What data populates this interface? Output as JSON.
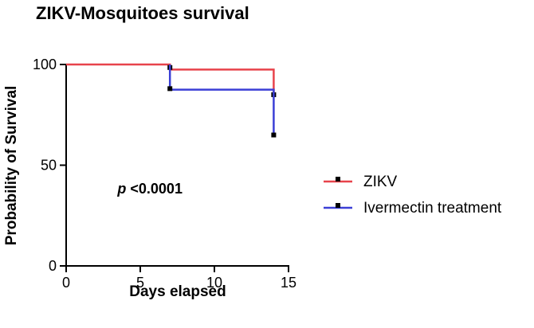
{
  "chart_data": {
    "type": "line",
    "title": "ZIKV-Mosquitoes survival",
    "xlabel": "Days elapsed",
    "ylabel": "Probability of Survival",
    "xlim": [
      0,
      15
    ],
    "ylim": [
      0,
      100
    ],
    "xticks": [
      0,
      5,
      10,
      15
    ],
    "yticks": [
      0,
      50,
      100
    ],
    "legend_position": "right",
    "series": [
      {
        "name": "ZIKV",
        "color": "#e8434b",
        "steps": [
          [
            0,
            100
          ],
          [
            7,
            100
          ],
          [
            7,
            97.5
          ],
          [
            14,
            97.5
          ],
          [
            14,
            85
          ]
        ],
        "markers": [
          [
            7,
            98.5
          ],
          [
            14,
            85
          ]
        ]
      },
      {
        "name": "Ivermectin treatment",
        "color": "#3b3fd6",
        "steps": [
          [
            7,
            100
          ],
          [
            7,
            87.5
          ],
          [
            14,
            87.5
          ],
          [
            14,
            65
          ]
        ],
        "markers": [
          [
            7,
            88
          ],
          [
            14,
            65
          ]
        ]
      }
    ],
    "annotation": {
      "italic": "p",
      "text": " <0.0001",
      "x": 4,
      "y": 36
    }
  }
}
